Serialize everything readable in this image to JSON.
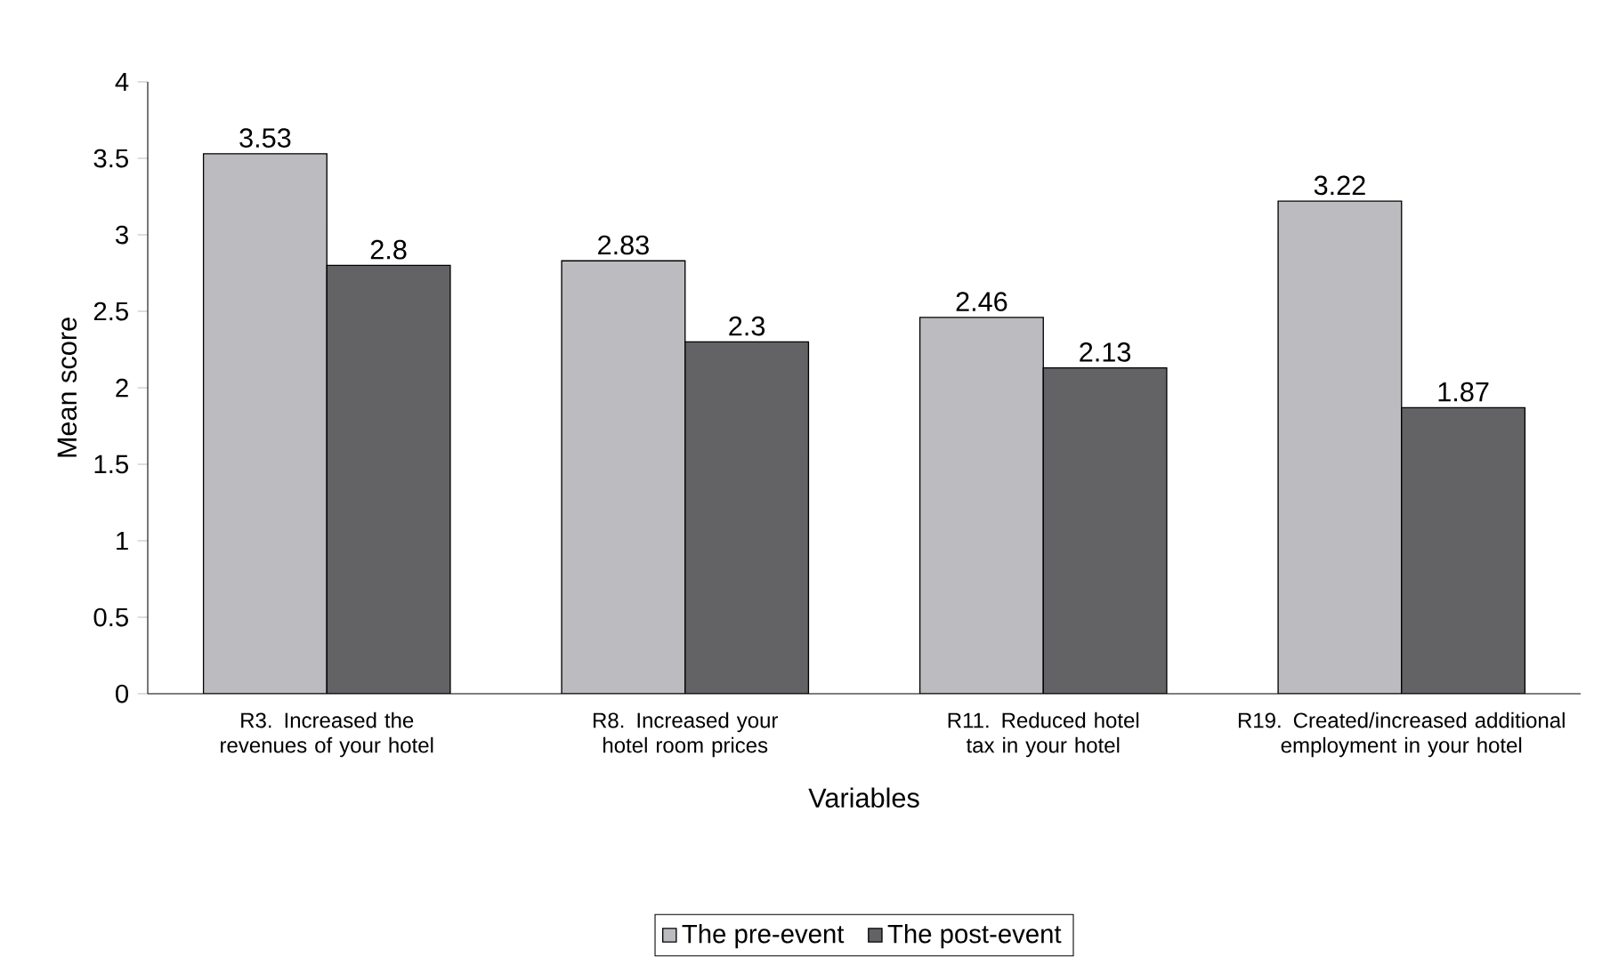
{
  "chart_data": {
    "type": "bar",
    "ylabel": "Mean score",
    "xlabel": "Variables",
    "categories": [
      "R3. Increased the revenues of your hotel",
      "R8. Increased your hotel room prices",
      "R11. Reduced hotel tax in your hotel",
      "R19. Created/increased additional employment in your hotel"
    ],
    "series": [
      {
        "name": "The pre-event",
        "color": "#bcbcc0",
        "values": [
          3.53,
          2.83,
          2.46,
          3.22
        ]
      },
      {
        "name": "The post-event",
        "color": "#636366",
        "values": [
          2.8,
          2.3,
          2.13,
          1.87
        ]
      }
    ],
    "ylim": [
      0,
      4
    ],
    "yticks": [
      0,
      0.5,
      1,
      1.5,
      2,
      2.5,
      3,
      3.5,
      4
    ],
    "data_labels": true,
    "legend": "bottom",
    "grid": false
  }
}
